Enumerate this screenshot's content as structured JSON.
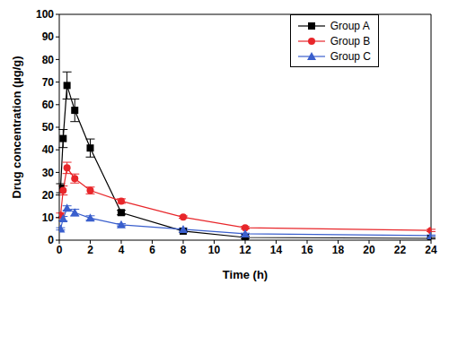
{
  "chart_data": {
    "type": "line",
    "x_label": "Time (h)",
    "y_label": "Drug concentration (µg/g)",
    "x": [
      0.083,
      0.25,
      0.5,
      1,
      2,
      4,
      8,
      12,
      24
    ],
    "xlim": [
      0,
      24
    ],
    "xticks": [
      0,
      2,
      4,
      6,
      8,
      10,
      12,
      14,
      16,
      18,
      20,
      22,
      24
    ],
    "ylim": [
      0,
      100
    ],
    "yticks": [
      0,
      10,
      20,
      30,
      40,
      50,
      60,
      70,
      80,
      90,
      100
    ],
    "grid": false,
    "legend": "upper right",
    "series": [
      {
        "name": "Group A",
        "color": "#000000",
        "marker": "square",
        "values": [
          23,
          45,
          68.5,
          57.5,
          40.8,
          12.2,
          4,
          1.2,
          0.8
        ],
        "errors": [
          2,
          4,
          6,
          5,
          4,
          1,
          0.5,
          0.5,
          0.3
        ]
      },
      {
        "name": "Group B",
        "color": "#e8262a",
        "marker": "circle",
        "values": [
          11,
          22,
          32,
          27.3,
          22,
          17.3,
          10.2,
          5.5,
          4.3
        ],
        "errors": [
          1,
          2,
          2.5,
          2,
          1.5,
          1,
          0.5,
          0.5,
          0.5
        ]
      },
      {
        "name": "Group C",
        "color": "#3a5fcd",
        "marker": "triangle",
        "values": [
          5,
          9.5,
          14.2,
          12.2,
          9.8,
          6.8,
          4.8,
          2.8,
          2
        ],
        "errors": [
          0.5,
          1,
          1,
          1.5,
          1,
          0.5,
          0.5,
          0.3,
          0.3
        ]
      }
    ]
  }
}
